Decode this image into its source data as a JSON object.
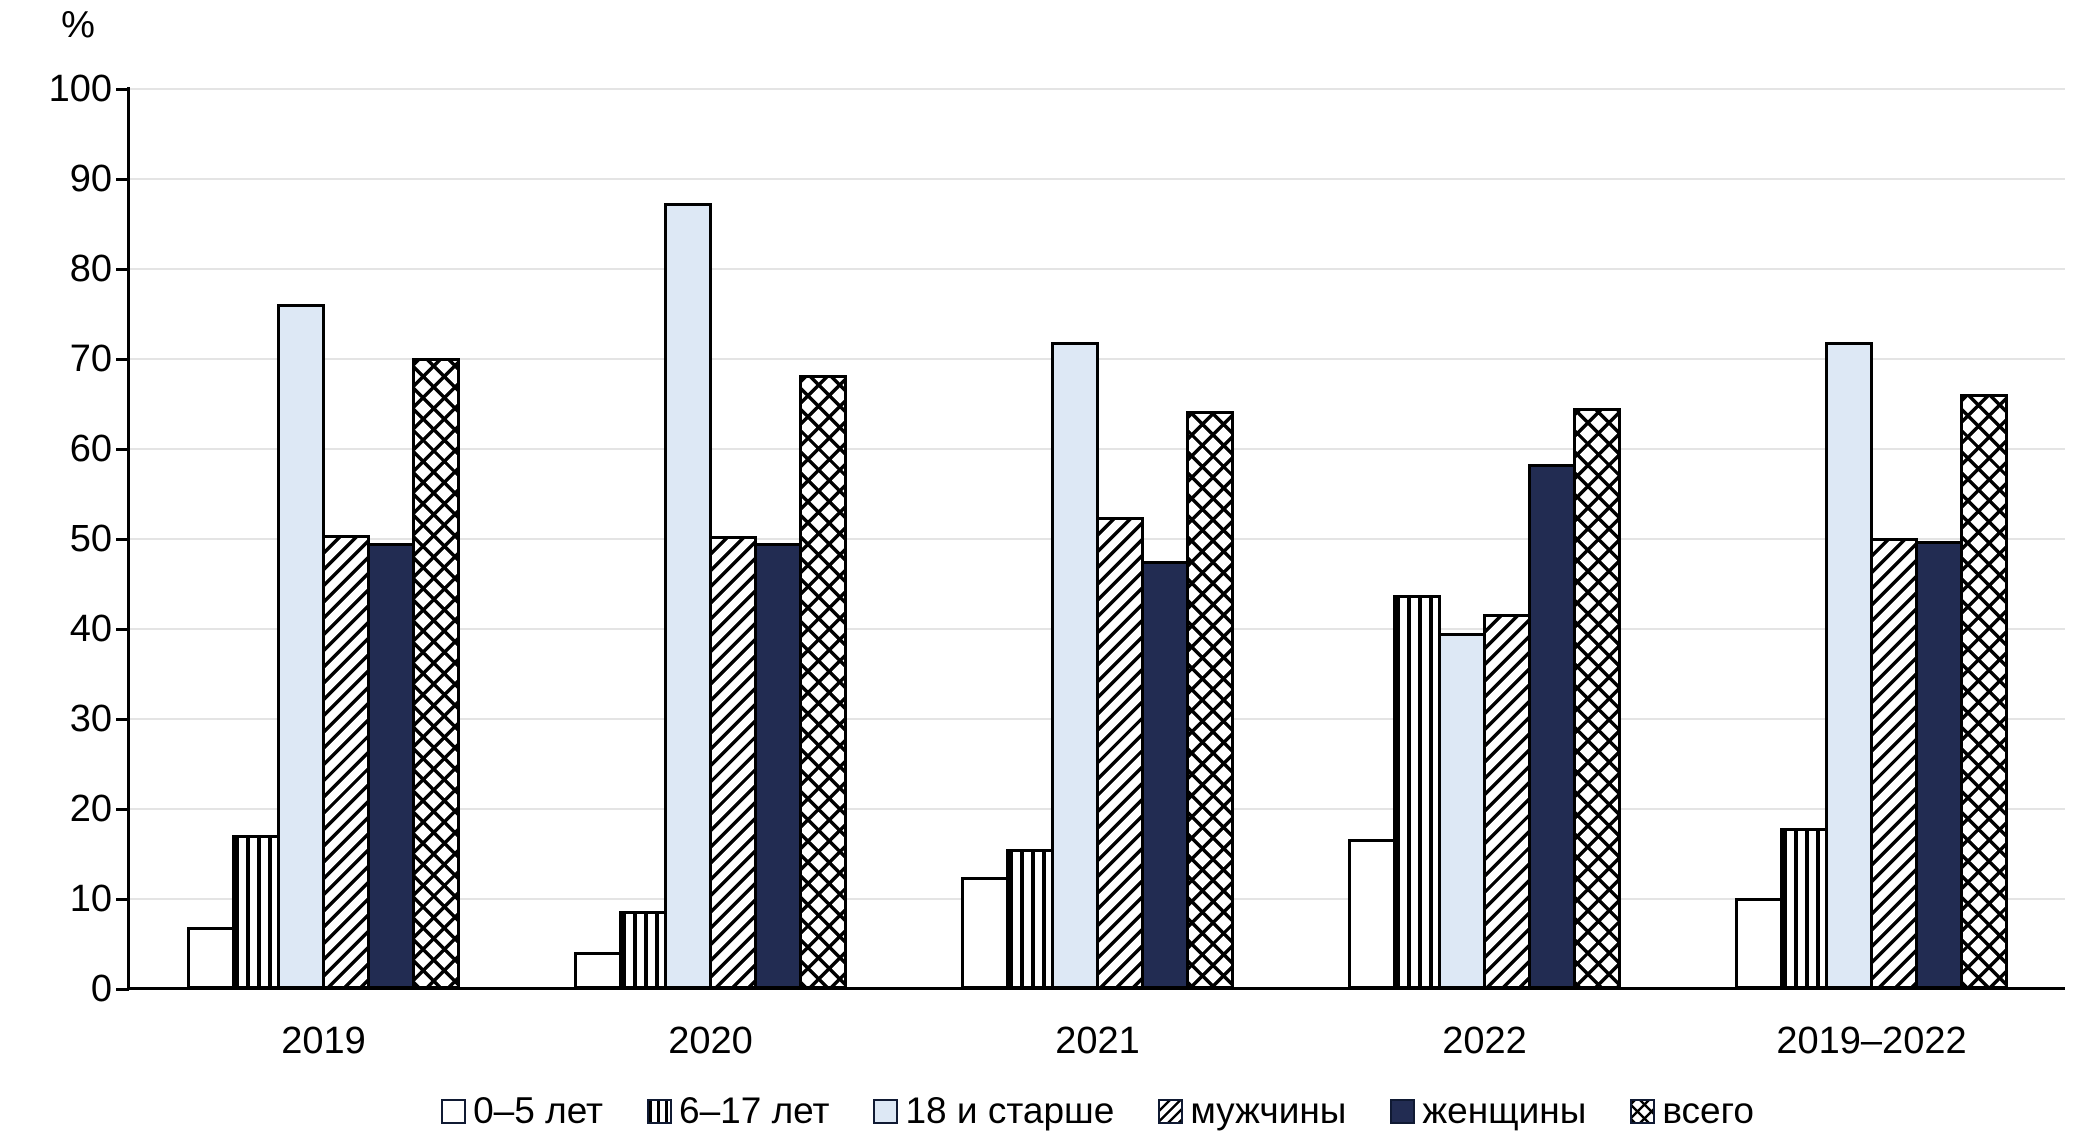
{
  "chart_data": {
    "type": "bar",
    "title": "",
    "ylabel": "%",
    "xlabel": "",
    "ylim": [
      0,
      100
    ],
    "ytick_step": 10,
    "grid": true,
    "legend_position": "bottom",
    "categories": [
      "2019",
      "2020",
      "2021",
      "2022",
      "2019–2022"
    ],
    "series": [
      {
        "name": "0–5 лет",
        "pattern": "plain",
        "values": [
          6.9,
          4.1,
          12.4,
          16.7,
          10.1
        ]
      },
      {
        "name": "6–17 лет",
        "pattern": "vertical-stripes",
        "values": [
          17.1,
          8.7,
          15.6,
          43.8,
          17.9
        ]
      },
      {
        "name": "18 и старше",
        "pattern": "solid-light",
        "values": [
          76.1,
          87.3,
          71.9,
          39.6,
          71.9
        ]
      },
      {
        "name": "мужчины",
        "pattern": "diagonal-hatch",
        "values": [
          50.4,
          50.3,
          52.4,
          41.7,
          50.1
        ]
      },
      {
        "name": "женщины",
        "pattern": "solid-dark",
        "values": [
          49.6,
          49.6,
          47.6,
          58.3,
          49.8
        ]
      },
      {
        "name": "всего",
        "pattern": "cross-hatch",
        "values": [
          70.1,
          68.2,
          64.2,
          64.6,
          66.1
        ]
      }
    ],
    "colors": {
      "light_blue": "#dde8f5",
      "dark_navy": "#222c52",
      "pattern_ink": "#000000",
      "gridline": "#e4e4e4",
      "axis": "#000000"
    }
  }
}
